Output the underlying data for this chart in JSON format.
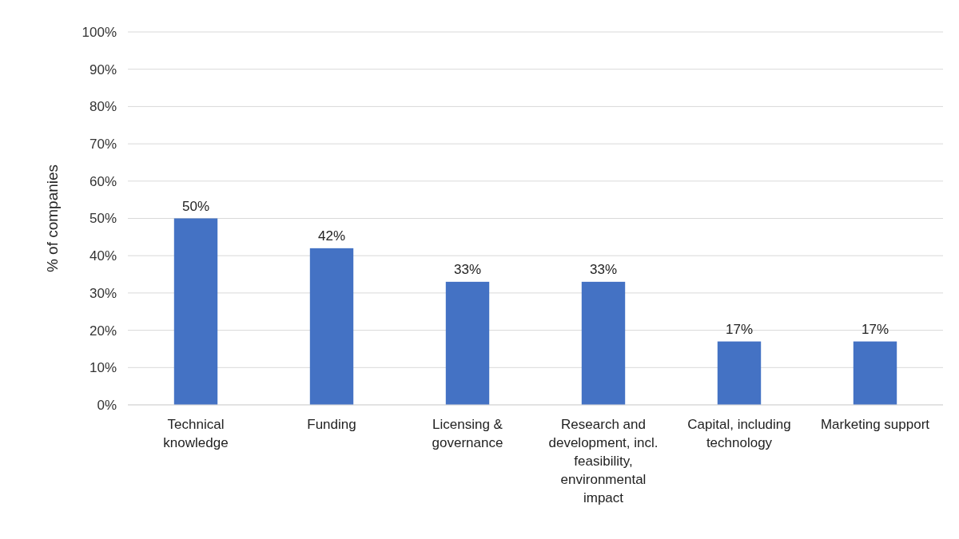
{
  "chart_data": {
    "type": "bar",
    "ylabel": "% of companies",
    "categories": [
      "Technical knowledge",
      "Funding",
      "Licensing & governance",
      "Research and development, incl. feasibility, environmental impact",
      "Capital, including technology",
      "Marketing support"
    ],
    "values": [
      50,
      42,
      33,
      33,
      17,
      17
    ],
    "value_labels": [
      "50%",
      "42%",
      "33%",
      "33%",
      "17%",
      "17%"
    ],
    "color": "#4472c4",
    "ylim": [
      0,
      100
    ],
    "yticks": [
      {
        "value": 0,
        "label": "0%"
      },
      {
        "value": 10,
        "label": "10%"
      },
      {
        "value": 20,
        "label": "20%"
      },
      {
        "value": 30,
        "label": "30%"
      },
      {
        "value": 40,
        "label": "40%"
      },
      {
        "value": 50,
        "label": "50%"
      },
      {
        "value": 60,
        "label": "60%"
      },
      {
        "value": 70,
        "label": "70%"
      },
      {
        "value": 80,
        "label": "80%"
      },
      {
        "value": 90,
        "label": "90%"
      },
      {
        "value": 100,
        "label": "100%"
      }
    ],
    "grid": "y"
  }
}
